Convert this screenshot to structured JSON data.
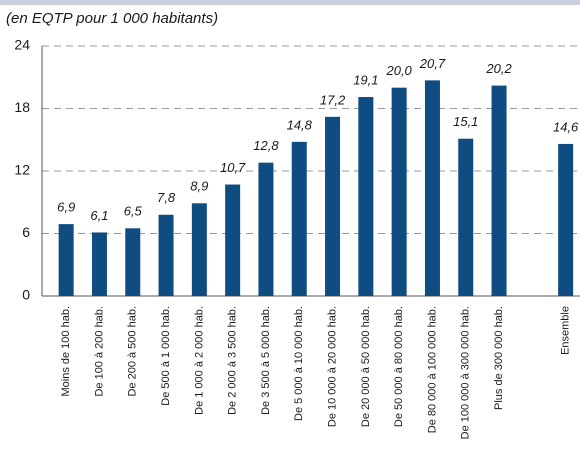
{
  "chart_data": {
    "type": "bar",
    "subtitle": "(en EQTP pour 1 000 habitants)",
    "categories": [
      "Moins de 100 hab.",
      "De 100 à 200 hab.",
      "De 200 à 500 hab.",
      "De 500 à 1 000 hab.",
      "De 1 000 à 2 000 hab.",
      "De 2 000 à 3 500 hab.",
      "De 3 500 à 5 000 hab.",
      "De 5 000 à 10 000 hab.",
      "De 10 000 à 20 000 hab.",
      "De 20 000 à 50 000 hab.",
      "De 50 000 à 80 000 hab.",
      "De 80 000 à 100 000 hab.",
      "De 100 000 à 300 000 hab.",
      "Plus de 300 000 hab.",
      null,
      "Ensemble"
    ],
    "values": [
      6.9,
      6.1,
      6.5,
      7.8,
      8.9,
      10.7,
      12.8,
      14.8,
      17.2,
      19.1,
      20.0,
      20.7,
      15.1,
      20.2,
      null,
      14.6
    ],
    "value_labels": [
      "6,9",
      "6,1",
      "6,5",
      "7,8",
      "8,9",
      "10,7",
      "12,8",
      "14,8",
      "17,2",
      "19,1",
      "20,0",
      "20,7",
      "15,1",
      "20,2",
      null,
      "14,6"
    ],
    "color": "#0f4c81",
    "ylim": [
      0,
      24
    ],
    "yticks": [
      0,
      6,
      12,
      18,
      24
    ],
    "grid": true
  }
}
